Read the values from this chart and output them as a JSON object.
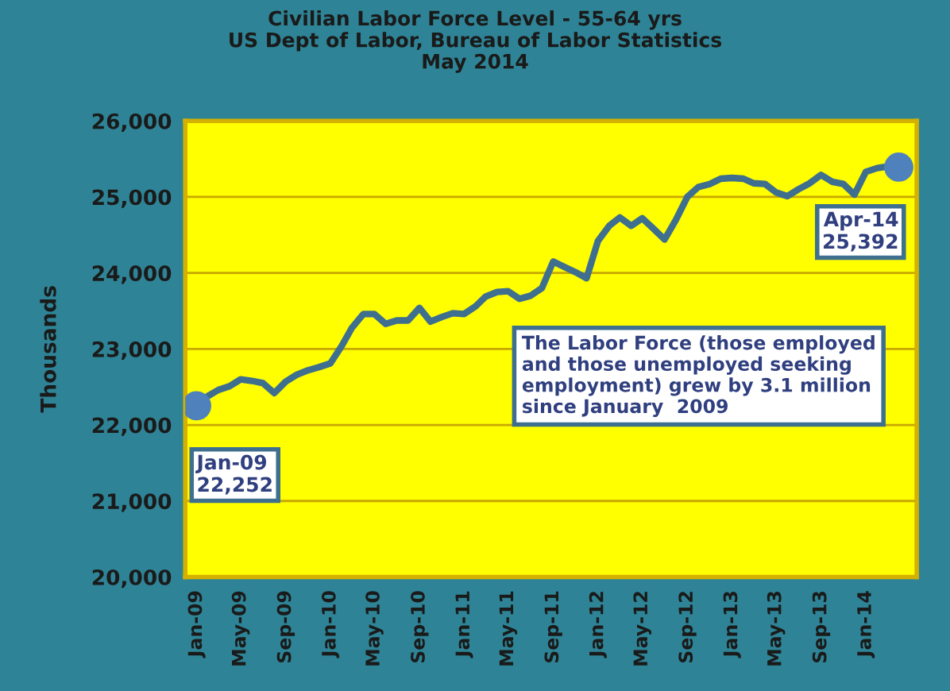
{
  "chart_data": {
    "type": "line",
    "title": "Civilian Labor Force Level - 55-64 yrs\nUS Dept of Labor, Bureau of Labor Statistics\nMay 2014",
    "ylabel": "Thousands",
    "x": [
      "2009-01",
      "2009-02",
      "2009-03",
      "2009-04",
      "2009-05",
      "2009-06",
      "2009-07",
      "2009-08",
      "2009-09",
      "2009-10",
      "2009-11",
      "2009-12",
      "2010-01",
      "2010-02",
      "2010-03",
      "2010-04",
      "2010-05",
      "2010-06",
      "2010-07",
      "2010-08",
      "2010-09",
      "2010-10",
      "2010-11",
      "2010-12",
      "2011-01",
      "2011-02",
      "2011-03",
      "2011-04",
      "2011-05",
      "2011-06",
      "2011-07",
      "2011-08",
      "2011-09",
      "2011-10",
      "2011-11",
      "2011-12",
      "2012-01",
      "2012-02",
      "2012-03",
      "2012-04",
      "2012-05",
      "2012-06",
      "2012-07",
      "2012-08",
      "2012-09",
      "2012-10",
      "2012-11",
      "2012-12",
      "2013-01",
      "2013-02",
      "2013-03",
      "2013-04",
      "2013-05",
      "2013-06",
      "2013-07",
      "2013-08",
      "2013-09",
      "2013-10",
      "2013-11",
      "2013-12",
      "2014-01",
      "2014-02",
      "2014-03",
      "2014-04"
    ],
    "series": [
      {
        "color": "#3f6f8f",
        "values": [
          22252,
          22380,
          22460,
          22510,
          22600,
          22580,
          22550,
          22420,
          22570,
          22660,
          22720,
          22760,
          22810,
          23040,
          23280,
          23460,
          23460,
          23330,
          23375,
          23375,
          23540,
          23360,
          23420,
          23470,
          23460,
          23560,
          23690,
          23750,
          23760,
          23660,
          23700,
          23800,
          24150,
          24080,
          24010,
          23930,
          24420,
          24620,
          24730,
          24620,
          24720,
          24580,
          24440,
          24700,
          25000,
          25130,
          25170,
          25240,
          25250,
          25240,
          25180,
          25170,
          25060,
          25010,
          25100,
          25180,
          25290,
          25200,
          25170,
          25030,
          25330,
          25380,
          25400,
          25392
        ]
      },
      {
        "type": "scatter",
        "color": "#4f81bd",
        "x": [
          "2009-01",
          "2014-04"
        ],
        "values": [
          22252,
          25392
        ]
      }
    ],
    "xlim": [
      "2008-12-01",
      "2014-05-20"
    ],
    "xticks": [
      {
        "value": "2009-01",
        "label": "Jan-09"
      },
      {
        "value": "2009-05",
        "label": "May-09"
      },
      {
        "value": "2009-09",
        "label": "Sep-09"
      },
      {
        "value": "2010-01",
        "label": "Jan-10"
      },
      {
        "value": "2010-05",
        "label": "May-10"
      },
      {
        "value": "2010-09",
        "label": "Sep-10"
      },
      {
        "value": "2011-01",
        "label": "Jan-11"
      },
      {
        "value": "2011-05",
        "label": "May-11"
      },
      {
        "value": "2011-09",
        "label": "Sep-11"
      },
      {
        "value": "2012-01",
        "label": "Jan-12"
      },
      {
        "value": "2012-05",
        "label": "May-12"
      },
      {
        "value": "2012-09",
        "label": "Sep-12"
      },
      {
        "value": "2013-01",
        "label": "Jan-13"
      },
      {
        "value": "2013-05",
        "label": "May-13"
      },
      {
        "value": "2013-09",
        "label": "Sep-13"
      },
      {
        "value": "2014-01",
        "label": "Jan-14"
      }
    ],
    "ylim": [
      20000,
      26000
    ],
    "yticks": [
      {
        "value": 20000,
        "label": "20,000"
      },
      {
        "value": 21000,
        "label": "21,000"
      },
      {
        "value": 22000,
        "label": "22,000"
      },
      {
        "value": 23000,
        "label": "23,000"
      },
      {
        "value": 24000,
        "label": "24,000"
      },
      {
        "value": 25000,
        "label": "25,000"
      },
      {
        "value": 26000,
        "label": "26,000"
      }
    ],
    "grid": "y",
    "annotations": [
      {
        "text": "Jan-09\n22,252",
        "x": "2009-01",
        "y": 22252
      },
      {
        "text": "Apr-14\n25,392",
        "x": "2014-04",
        "y": 25392
      },
      "The Labor Force (those employed\nand those unemployed seeking\nemployment) grew by 3.1 million\nsince January  2009"
    ]
  }
}
